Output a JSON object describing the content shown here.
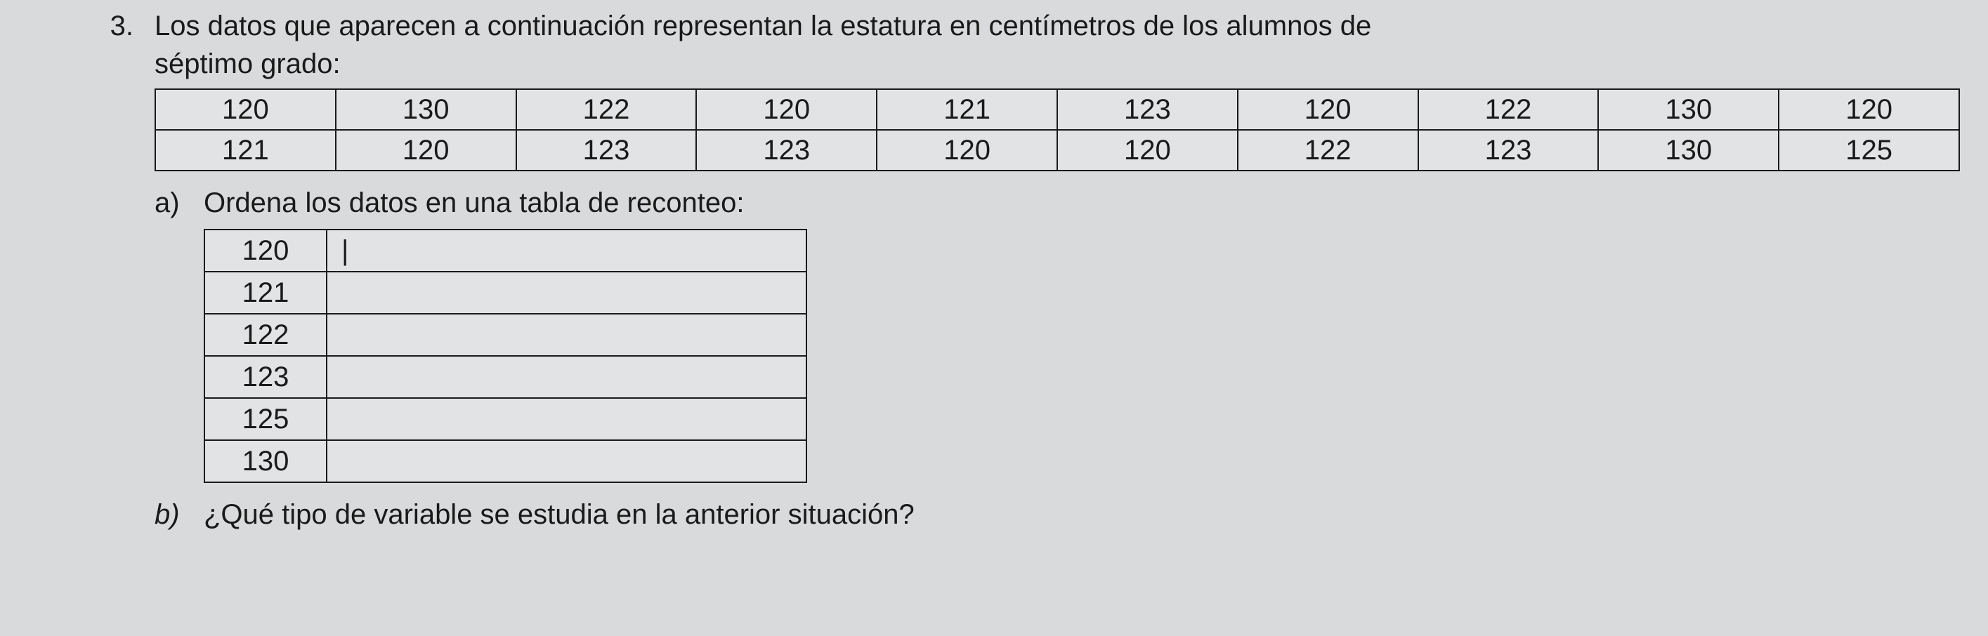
{
  "question": {
    "number": "3.",
    "text_line1": "Los datos que aparecen a continuación representan la estatura en centímetros de los alumnos de",
    "text_line2": "séptimo grado:"
  },
  "data_rows": [
    [
      "120",
      "130",
      "122",
      "120",
      "121",
      "123",
      "120",
      "122",
      "130",
      "120"
    ],
    [
      "121",
      "120",
      "123",
      "123",
      "120",
      "120",
      "122",
      "123",
      "130",
      "125"
    ]
  ],
  "part_a": {
    "label": "a)",
    "prompt": "Ordena los datos en una tabla de reconteo:",
    "tally": [
      {
        "key": "120",
        "val": "|"
      },
      {
        "key": "121",
        "val": ""
      },
      {
        "key": "122",
        "val": ""
      },
      {
        "key": "123",
        "val": ""
      },
      {
        "key": "125",
        "val": ""
      },
      {
        "key": "130",
        "val": ""
      }
    ]
  },
  "part_b": {
    "label": "b)",
    "prompt": "¿Qué tipo de variable se estudia en la anterior situación?"
  }
}
